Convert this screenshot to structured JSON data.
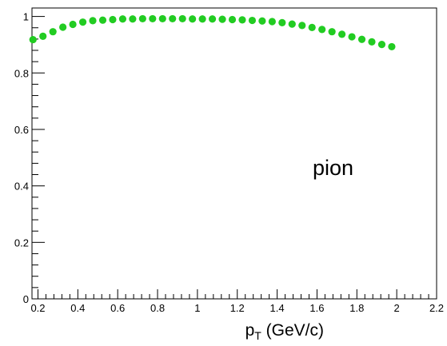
{
  "chart_data": {
    "type": "scatter",
    "title": "",
    "xlabel_main": "p",
    "xlabel_sub": "T",
    "xlabel_rest": " (GeV/c)",
    "ylabel": "",
    "annotation": "pion",
    "xlim": [
      0.17,
      2.2
    ],
    "ylim": [
      0,
      1.03
    ],
    "xticks": [
      0.2,
      0.4,
      0.6,
      0.8,
      1,
      1.2,
      1.4,
      1.6,
      1.8,
      2,
      2.2
    ],
    "yticks": [
      0,
      0.2,
      0.4,
      0.6,
      0.8,
      1
    ],
    "grid": false,
    "marker_color": "#22cc22",
    "series": [
      {
        "x": [
          0.175,
          0.225,
          0.275,
          0.325,
          0.375,
          0.425,
          0.475,
          0.525,
          0.575,
          0.625,
          0.675,
          0.725,
          0.775,
          0.825,
          0.875,
          0.925,
          0.975,
          1.025,
          1.075,
          1.125,
          1.175,
          1.225,
          1.275,
          1.325,
          1.375,
          1.425,
          1.475,
          1.525,
          1.575,
          1.625,
          1.675,
          1.725,
          1.775,
          1.825,
          1.875,
          1.925,
          1.975
        ],
        "y": [
          0.918,
          0.93,
          0.946,
          0.962,
          0.972,
          0.98,
          0.985,
          0.987,
          0.989,
          0.991,
          0.991,
          0.992,
          0.992,
          0.992,
          0.992,
          0.992,
          0.991,
          0.991,
          0.991,
          0.99,
          0.989,
          0.988,
          0.986,
          0.984,
          0.982,
          0.978,
          0.973,
          0.968,
          0.961,
          0.954,
          0.946,
          0.937,
          0.928,
          0.919,
          0.91,
          0.901,
          0.893
        ]
      }
    ]
  }
}
